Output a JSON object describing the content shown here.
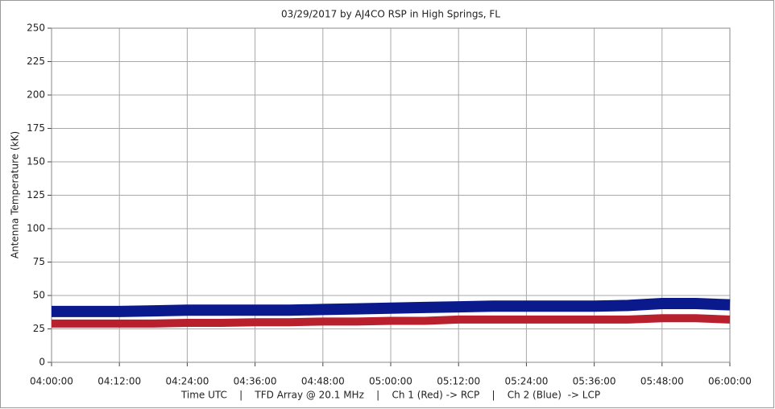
{
  "chart_data": {
    "type": "line",
    "title": "03/29/2017  by  AJ4CO RSP  in  High Springs, FL",
    "y_label": "Antenna Temperature (kK)",
    "x_label": "Time UTC    |    TFD Array @ 20.1 MHz    |    Ch 1 (Red) -> RCP    |    Ch 2 (Blue)  -> LCP",
    "x": [
      "04:00:00",
      "04:06:00",
      "04:12:00",
      "04:18:00",
      "04:24:00",
      "04:30:00",
      "04:36:00",
      "04:42:00",
      "04:48:00",
      "04:54:00",
      "05:00:00",
      "05:06:00",
      "05:12:00",
      "05:18:00",
      "05:24:00",
      "05:30:00",
      "05:36:00",
      "05:42:00",
      "05:48:00",
      "05:54:00",
      "06:00:00"
    ],
    "series": [
      {
        "color": "#0a1a8c",
        "values": [
          38,
          38,
          38,
          38.5,
          39,
          39,
          39,
          39,
          39.5,
          40,
          40.5,
          41,
          41.5,
          42,
          42,
          42,
          42,
          42.5,
          44,
          44,
          43
        ]
      },
      {
        "color": "#b8202e",
        "values": [
          29,
          29,
          29,
          29,
          29.5,
          29.5,
          30,
          30,
          30.5,
          30.5,
          31,
          31,
          32,
          32,
          32,
          32,
          32,
          32,
          33,
          33,
          32
        ]
      }
    ],
    "xlim": [
      "04:00:00",
      "06:00:00"
    ],
    "xticks": [
      "04:00:00",
      "04:12:00",
      "04:24:00",
      "04:36:00",
      "04:48:00",
      "05:00:00",
      "05:12:00",
      "05:24:00",
      "05:36:00",
      "05:48:00",
      "06:00:00"
    ],
    "ylim": [
      0,
      250
    ],
    "yticks": [
      0,
      25,
      50,
      75,
      100,
      125,
      150,
      175,
      200,
      225,
      250
    ],
    "grid": true
  }
}
